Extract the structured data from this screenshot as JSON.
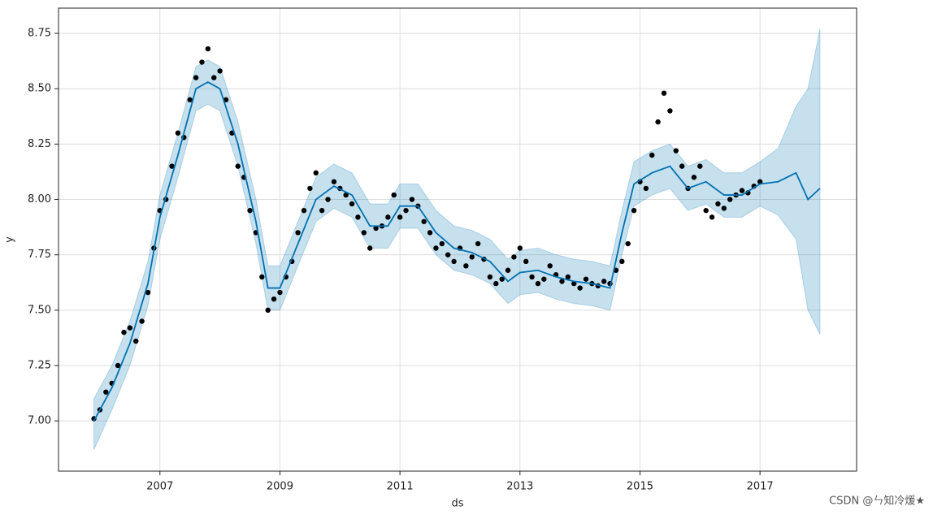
{
  "chart_data": {
    "type": "forecast",
    "xlabel": "ds",
    "ylabel": "y",
    "grid": true,
    "xlim": [
      2005.31,
      2018.61
    ],
    "ylim": [
      6.773,
      8.864
    ],
    "xticks": [
      2007,
      2009,
      2011,
      2013,
      2015,
      2017
    ],
    "yticks": [
      {
        "value": 7,
        "label": "7.00"
      },
      7.25,
      {
        "value": 7.5,
        "label": "7.50"
      },
      7.75,
      {
        "value": 8,
        "label": "8.00"
      },
      8.25,
      {
        "value": 8.5,
        "label": "8.50"
      },
      8.75
    ],
    "forecast": {
      "color": "#0072b2",
      "x": [
        2005.9,
        2006.2,
        2006.5,
        2006.8,
        2007.0,
        2007.3,
        2007.6,
        2007.8,
        2008.0,
        2008.3,
        2008.6,
        2008.8,
        2009.0,
        2009.3,
        2009.6,
        2009.9,
        2010.2,
        2010.5,
        2010.8,
        2011.0,
        2011.3,
        2011.6,
        2011.9,
        2012.2,
        2012.5,
        2012.8,
        2013.0,
        2013.3,
        2013.6,
        2013.9,
        2014.2,
        2014.5,
        2014.7,
        2014.9,
        2015.2,
        2015.5,
        2015.8,
        2016.1,
        2016.4,
        2016.7,
        2017.0,
        2017.3,
        2017.6,
        2017.8,
        2018.0
      ],
      "values": [
        7.0,
        7.15,
        7.35,
        7.62,
        7.92,
        8.2,
        8.5,
        8.53,
        8.5,
        8.25,
        7.9,
        7.6,
        7.6,
        7.8,
        8.0,
        8.06,
        8.02,
        7.88,
        7.88,
        7.97,
        7.97,
        7.85,
        7.78,
        7.76,
        7.72,
        7.63,
        7.67,
        7.68,
        7.65,
        7.63,
        7.62,
        7.6,
        7.85,
        8.07,
        8.12,
        8.15,
        8.05,
        8.08,
        8.02,
        8.02,
        8.07,
        8.08,
        8.12,
        8.0,
        8.05
      ],
      "upper": [
        7.1,
        7.25,
        7.45,
        7.72,
        8.02,
        8.3,
        8.6,
        8.63,
        8.6,
        8.35,
        8.0,
        7.7,
        7.7,
        7.9,
        8.1,
        8.16,
        8.12,
        7.98,
        7.98,
        8.07,
        8.07,
        7.95,
        7.88,
        7.86,
        7.82,
        7.73,
        7.77,
        7.78,
        7.75,
        7.73,
        7.72,
        7.7,
        7.95,
        8.17,
        8.22,
        8.25,
        8.15,
        8.18,
        8.12,
        8.12,
        8.17,
        8.23,
        8.42,
        8.5,
        8.77
      ],
      "lower": [
        6.87,
        7.05,
        7.25,
        7.52,
        7.82,
        8.1,
        8.4,
        8.43,
        8.4,
        8.15,
        7.8,
        7.5,
        7.5,
        7.7,
        7.9,
        7.96,
        7.92,
        7.78,
        7.78,
        7.87,
        7.87,
        7.75,
        7.68,
        7.66,
        7.62,
        7.53,
        7.57,
        7.58,
        7.55,
        7.53,
        7.52,
        7.5,
        7.75,
        7.97,
        8.02,
        8.05,
        7.95,
        7.98,
        7.92,
        7.92,
        7.97,
        7.93,
        7.82,
        7.5,
        7.39
      ]
    },
    "points": {
      "color": "#000000",
      "x": [
        2005.9,
        2006.0,
        2006.1,
        2006.2,
        2006.3,
        2006.4,
        2006.5,
        2006.6,
        2006.7,
        2006.8,
        2006.9,
        2007.0,
        2007.1,
        2007.2,
        2007.3,
        2007.4,
        2007.5,
        2007.6,
        2007.7,
        2007.8,
        2007.9,
        2008.0,
        2008.1,
        2008.2,
        2008.3,
        2008.4,
        2008.5,
        2008.6,
        2008.7,
        2008.8,
        2008.9,
        2009.0,
        2009.1,
        2009.2,
        2009.3,
        2009.4,
        2009.5,
        2009.6,
        2009.7,
        2009.8,
        2009.9,
        2010.0,
        2010.1,
        2010.2,
        2010.3,
        2010.4,
        2010.5,
        2010.6,
        2010.7,
        2010.8,
        2010.9,
        2011.0,
        2011.1,
        2011.2,
        2011.3,
        2011.4,
        2011.5,
        2011.6,
        2011.7,
        2011.8,
        2011.9,
        2012.0,
        2012.1,
        2012.2,
        2012.3,
        2012.4,
        2012.5,
        2012.6,
        2012.7,
        2012.8,
        2012.9,
        2013.0,
        2013.1,
        2013.2,
        2013.3,
        2013.4,
        2013.5,
        2013.6,
        2013.7,
        2013.8,
        2013.9,
        2014.0,
        2014.1,
        2014.2,
        2014.3,
        2014.4,
        2014.5,
        2014.6,
        2014.7,
        2014.8,
        2014.9,
        2015.0,
        2015.1,
        2015.2,
        2015.3,
        2015.4,
        2015.5,
        2015.6,
        2015.7,
        2015.8,
        2015.9,
        2016.0,
        2016.1,
        2016.2,
        2016.3,
        2016.4,
        2016.5,
        2016.6,
        2016.7,
        2016.8,
        2016.9,
        2017.0
      ],
      "values": [
        7.01,
        7.05,
        7.13,
        7.17,
        7.25,
        7.4,
        7.42,
        7.36,
        7.45,
        7.58,
        7.78,
        7.95,
        8.0,
        8.15,
        8.3,
        8.28,
        8.45,
        8.55,
        8.62,
        8.68,
        8.55,
        8.58,
        8.45,
        8.3,
        8.15,
        8.1,
        7.95,
        7.85,
        7.65,
        7.5,
        7.55,
        7.58,
        7.65,
        7.72,
        7.85,
        7.95,
        8.05,
        8.12,
        7.95,
        8.0,
        8.08,
        8.05,
        8.02,
        7.98,
        7.92,
        7.85,
        7.78,
        7.87,
        7.88,
        7.92,
        8.02,
        7.92,
        7.95,
        8.0,
        7.97,
        7.9,
        7.85,
        7.78,
        7.8,
        7.75,
        7.72,
        7.78,
        7.7,
        7.74,
        7.8,
        7.73,
        7.65,
        7.62,
        7.64,
        7.68,
        7.74,
        7.78,
        7.72,
        7.65,
        7.62,
        7.64,
        7.7,
        7.66,
        7.63,
        7.65,
        7.62,
        7.6,
        7.64,
        7.62,
        7.61,
        7.63,
        7.62,
        7.68,
        7.72,
        7.8,
        7.95,
        8.08,
        8.05,
        8.2,
        8.35,
        8.48,
        8.4,
        8.22,
        8.15,
        8.05,
        8.1,
        8.15,
        7.95,
        7.92,
        7.98,
        7.96,
        8.0,
        8.02,
        8.04,
        8.03,
        8.06,
        8.08
      ]
    }
  },
  "watermark": "CSDN @ㄣ知冷煖★"
}
